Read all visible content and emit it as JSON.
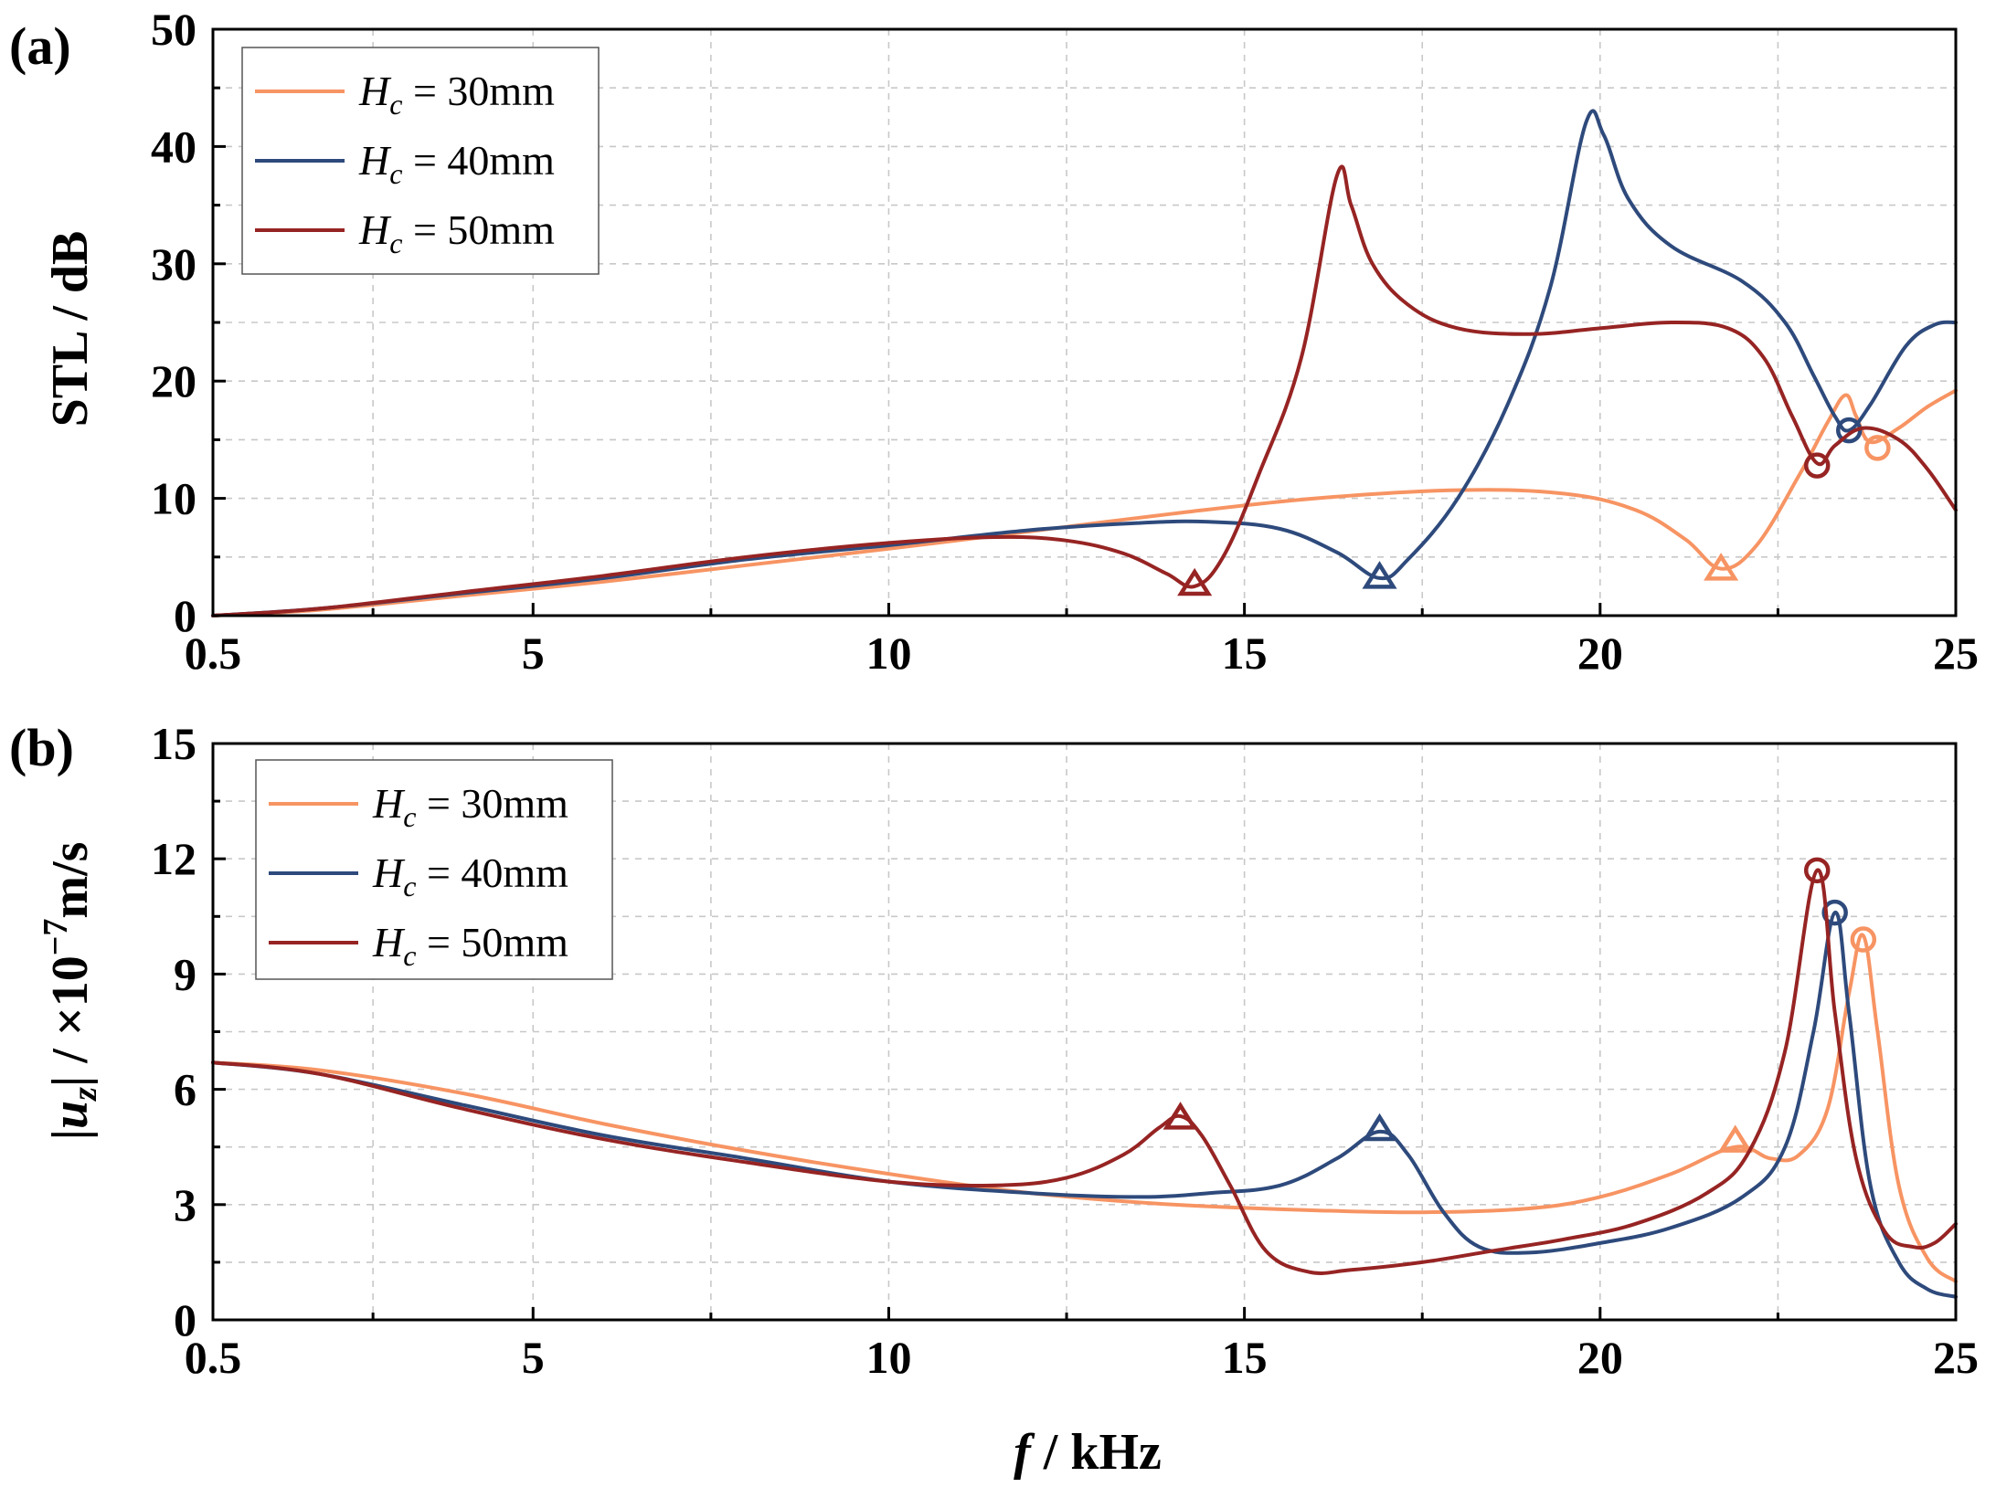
{
  "colors": {
    "H30": "#f79463",
    "H40": "#2e4a7c",
    "H50": "#962423"
  },
  "xaxis": {
    "title_italic": "f",
    "title_rest": " / kHz"
  },
  "chart_data": [
    {
      "id": "a",
      "type": "line",
      "panel_label": "(a)",
      "ylabel": "STL / dB",
      "xlim": [
        0.5,
        25
      ],
      "ylim": [
        0,
        50
      ],
      "xticks": [
        0.5,
        5,
        10,
        15,
        20,
        25
      ],
      "xtick_labels": [
        "0.5",
        "5",
        "10",
        "15",
        "20",
        "25"
      ],
      "yticks": [
        0,
        10,
        20,
        30,
        40,
        50
      ],
      "ytick_labels": [
        "0",
        "10",
        "20",
        "30",
        "40",
        "50"
      ],
      "grid": true,
      "legend": {
        "position": "top-left",
        "entries": [
          {
            "italic": "H",
            "sub": "c",
            "rest": " = 30mm",
            "color_key": "H30"
          },
          {
            "italic": "H",
            "sub": "c",
            "rest": " = 40mm",
            "color_key": "H40"
          },
          {
            "italic": "H",
            "sub": "c",
            "rest": " = 50mm",
            "color_key": "H50"
          }
        ]
      },
      "series": [
        {
          "name": "Hc = 30mm",
          "color_key": "H30",
          "points": [
            [
              0.5,
              0
            ],
            [
              2,
              0.5
            ],
            [
              4,
              1.7
            ],
            [
              6,
              2.9
            ],
            [
              8,
              4.3
            ],
            [
              10,
              5.7
            ],
            [
              12,
              7.2
            ],
            [
              14,
              8.7
            ],
            [
              16,
              10
            ],
            [
              18,
              10.7
            ],
            [
              19.5,
              10.4
            ],
            [
              20.5,
              9
            ],
            [
              21.2,
              6.5
            ],
            [
              21.7,
              4
            ],
            [
              22.2,
              6
            ],
            [
              22.8,
              12
            ],
            [
              23.2,
              16.5
            ],
            [
              23.45,
              18.8
            ],
            [
              23.6,
              17
            ],
            [
              23.8,
              14.8
            ],
            [
              24.2,
              16
            ],
            [
              24.6,
              17.8
            ],
            [
              25,
              19.2
            ]
          ],
          "markers": [
            {
              "x": 21.7,
              "y": 3.8,
              "shape": "triangle"
            },
            {
              "x": 23.9,
              "y": 14.3,
              "shape": "circle"
            }
          ]
        },
        {
          "name": "Hc = 40mm",
          "color_key": "H40",
          "points": [
            [
              0.5,
              0
            ],
            [
              2,
              0.6
            ],
            [
              4,
              1.9
            ],
            [
              6,
              3.2
            ],
            [
              8,
              4.8
            ],
            [
              10,
              6
            ],
            [
              12,
              7.3
            ],
            [
              13.5,
              7.9
            ],
            [
              14.5,
              8
            ],
            [
              15.5,
              7.4
            ],
            [
              16.3,
              5.4
            ],
            [
              16.9,
              3.2
            ],
            [
              17.3,
              4.8
            ],
            [
              18,
              10
            ],
            [
              18.7,
              18
            ],
            [
              19.3,
              28
            ],
            [
              19.8,
              42
            ],
            [
              20.05,
              41
            ],
            [
              20.4,
              35.5
            ],
            [
              21,
              31.5
            ],
            [
              22,
              28.5
            ],
            [
              22.6,
              25
            ],
            [
              23,
              20.5
            ],
            [
              23.3,
              17
            ],
            [
              23.5,
              15.8
            ],
            [
              23.8,
              18
            ],
            [
              24.3,
              23
            ],
            [
              24.7,
              24.8
            ],
            [
              25,
              25
            ]
          ],
          "markers": [
            {
              "x": 16.9,
              "y": 3.1,
              "shape": "triangle"
            },
            {
              "x": 23.5,
              "y": 15.8,
              "shape": "circle"
            }
          ]
        },
        {
          "name": "Hc = 50mm",
          "color_key": "H50",
          "points": [
            [
              0.5,
              0
            ],
            [
              2,
              0.6
            ],
            [
              4,
              2
            ],
            [
              6,
              3.4
            ],
            [
              8,
              5
            ],
            [
              10,
              6.2
            ],
            [
              11.5,
              6.7
            ],
            [
              12.5,
              6.4
            ],
            [
              13.3,
              5.3
            ],
            [
              13.9,
              3.6
            ],
            [
              14.3,
              2.5
            ],
            [
              14.7,
              5
            ],
            [
              15.2,
              12
            ],
            [
              15.8,
              22
            ],
            [
              16.3,
              37.5
            ],
            [
              16.5,
              35
            ],
            [
              16.8,
              30
            ],
            [
              17.3,
              26.5
            ],
            [
              18,
              24.5
            ],
            [
              19,
              24
            ],
            [
              20,
              24.5
            ],
            [
              21,
              25
            ],
            [
              21.8,
              24.5
            ],
            [
              22.3,
              22
            ],
            [
              22.7,
              17
            ],
            [
              23.05,
              13
            ],
            [
              23.3,
              14.5
            ],
            [
              23.7,
              16
            ],
            [
              24.2,
              15
            ],
            [
              24.6,
              12.5
            ],
            [
              25,
              9
            ]
          ],
          "markers": [
            {
              "x": 14.3,
              "y": 2.5,
              "shape": "triangle"
            },
            {
              "x": 23.05,
              "y": 12.8,
              "shape": "circle"
            }
          ]
        }
      ]
    },
    {
      "id": "b",
      "type": "line",
      "panel_label": "(b)",
      "ylabel": "|uz| / ×10⁻⁷m/s",
      "ylabel_parts": {
        "bar": "|",
        "u": "u",
        "sub": "z",
        "mid": " / ×10",
        "sup": "−7",
        "unit": "m/s"
      },
      "xlim": [
        0.5,
        25
      ],
      "ylim": [
        0,
        15
      ],
      "xticks": [
        0.5,
        5,
        10,
        15,
        20,
        25
      ],
      "xtick_labels": [
        "0.5",
        "5",
        "10",
        "15",
        "20",
        "25"
      ],
      "yticks": [
        0,
        3,
        6,
        9,
        12,
        15
      ],
      "ytick_labels": [
        "0",
        "3",
        "6",
        "9",
        "12",
        "15"
      ],
      "grid": true,
      "legend": {
        "position": "top-left",
        "entries": [
          {
            "italic": "H",
            "sub": "c",
            "rest": " = 30mm",
            "color_key": "H30"
          },
          {
            "italic": "H",
            "sub": "c",
            "rest": " = 40mm",
            "color_key": "H40"
          },
          {
            "italic": "H",
            "sub": "c",
            "rest": " = 50mm",
            "color_key": "H50"
          }
        ]
      },
      "series": [
        {
          "name": "Hc = 30mm",
          "color_key": "H30",
          "points": [
            [
              0.5,
              6.7
            ],
            [
              2,
              6.5
            ],
            [
              4,
              5.9
            ],
            [
              6,
              5.1
            ],
            [
              8,
              4.4
            ],
            [
              10,
              3.8
            ],
            [
              12,
              3.3
            ],
            [
              14,
              3
            ],
            [
              16,
              2.85
            ],
            [
              17.5,
              2.8
            ],
            [
              19,
              2.9
            ],
            [
              20,
              3.2
            ],
            [
              21,
              3.8
            ],
            [
              21.9,
              4.5
            ],
            [
              22.4,
              4.2
            ],
            [
              22.8,
              4.3
            ],
            [
              23.2,
              5.5
            ],
            [
              23.5,
              8.5
            ],
            [
              23.7,
              10
            ],
            [
              23.9,
              7.5
            ],
            [
              24.2,
              3.5
            ],
            [
              24.6,
              1.6
            ],
            [
              25,
              1
            ]
          ],
          "markers": [
            {
              "x": 21.9,
              "y": 4.6,
              "shape": "triangle"
            },
            {
              "x": 23.7,
              "y": 9.9,
              "shape": "circle"
            }
          ]
        },
        {
          "name": "Hc = 40mm",
          "color_key": "H40",
          "points": [
            [
              0.5,
              6.7
            ],
            [
              2,
              6.4
            ],
            [
              4,
              5.6
            ],
            [
              6,
              4.8
            ],
            [
              8,
              4.2
            ],
            [
              10,
              3.6
            ],
            [
              12,
              3.3
            ],
            [
              13.5,
              3.2
            ],
            [
              14.5,
              3.3
            ],
            [
              15.5,
              3.5
            ],
            [
              16.3,
              4.2
            ],
            [
              16.9,
              4.9
            ],
            [
              17.3,
              4.3
            ],
            [
              17.8,
              2.8
            ],
            [
              18.3,
              1.9
            ],
            [
              19,
              1.75
            ],
            [
              20,
              2
            ],
            [
              21,
              2.4
            ],
            [
              22,
              3.2
            ],
            [
              22.6,
              4.5
            ],
            [
              23,
              7.5
            ],
            [
              23.3,
              10.6
            ],
            [
              23.5,
              8
            ],
            [
              23.8,
              3.5
            ],
            [
              24.2,
              1.5
            ],
            [
              24.6,
              0.8
            ],
            [
              25,
              0.6
            ]
          ],
          "markers": [
            {
              "x": 16.9,
              "y": 4.9,
              "shape": "triangle"
            },
            {
              "x": 23.3,
              "y": 10.6,
              "shape": "circle"
            }
          ]
        },
        {
          "name": "Hc = 50mm",
          "color_key": "H50",
          "points": [
            [
              0.5,
              6.7
            ],
            [
              2,
              6.4
            ],
            [
              4,
              5.5
            ],
            [
              6,
              4.7
            ],
            [
              8,
              4.1
            ],
            [
              10,
              3.6
            ],
            [
              11.5,
              3.5
            ],
            [
              12.5,
              3.7
            ],
            [
              13.3,
              4.3
            ],
            [
              13.8,
              5
            ],
            [
              14.1,
              5.3
            ],
            [
              14.4,
              4.8
            ],
            [
              14.8,
              3.5
            ],
            [
              15.3,
              1.8
            ],
            [
              15.9,
              1.25
            ],
            [
              16.5,
              1.3
            ],
            [
              17.5,
              1.5
            ],
            [
              18.5,
              1.8
            ],
            [
              19.5,
              2.1
            ],
            [
              20.5,
              2.5
            ],
            [
              21.5,
              3.3
            ],
            [
              22.1,
              4.4
            ],
            [
              22.6,
              7
            ],
            [
              23.05,
              11.7
            ],
            [
              23.3,
              8
            ],
            [
              23.6,
              4.2
            ],
            [
              24,
              2.3
            ],
            [
              24.4,
              1.9
            ],
            [
              24.7,
              2
            ],
            [
              25,
              2.5
            ]
          ],
          "markers": [
            {
              "x": 14.1,
              "y": 5.2,
              "shape": "triangle"
            },
            {
              "x": 23.05,
              "y": 11.7,
              "shape": "circle"
            }
          ]
        }
      ]
    }
  ]
}
